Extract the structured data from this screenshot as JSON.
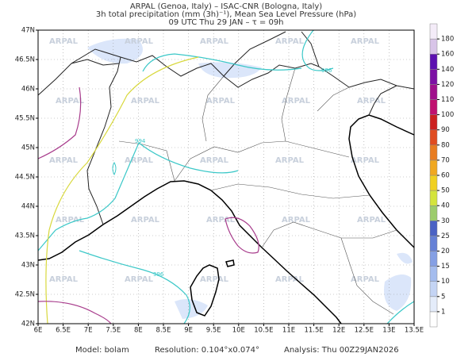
{
  "header": {
    "line1": "ARPAL (Genoa, Italy)  –  ISAC-CNR (Bologna, Italy)",
    "line2": "3h total precipitation (mm (3h)⁻¹), Mean Sea Level Pressure (hPa)",
    "line3": "09 UTC Thu 29 JAN  –  τ = 09h"
  },
  "axes": {
    "lon_labels": [
      "6E",
      "6.5E",
      "7E",
      "7.5E",
      "8E",
      "8.5E",
      "9E",
      "9.5E",
      "10E",
      "10.5E",
      "11E",
      "11.5E",
      "12E",
      "12.5E",
      "13E",
      "13.5E"
    ],
    "lat_labels": [
      "47N",
      "46.5N",
      "46N",
      "45.5N",
      "45N",
      "44.5N",
      "44N",
      "43.5N",
      "43N",
      "42.5N",
      "42N"
    ]
  },
  "watermark": "ARPAL",
  "contour_labels": [
    "996",
    "994",
    "996"
  ],
  "colorbar": {
    "levels": [
      1,
      5,
      10,
      15,
      20,
      25,
      30,
      40,
      50,
      60,
      70,
      80,
      90,
      100,
      110,
      120,
      140,
      160,
      180
    ],
    "colors": [
      "#ffffff",
      "#e4ecfa",
      "#c4d4f4",
      "#a4bcee",
      "#849fe4",
      "#6580d6",
      "#4a62c4",
      "#9ccc6c",
      "#d4e43c",
      "#f0d020",
      "#f0a820",
      "#e87c20",
      "#e04c20",
      "#cc2020",
      "#c01070",
      "#a0108c",
      "#7c10a4",
      "#5c10b0",
      "#d8c4e8",
      "#f4ecf8"
    ]
  },
  "footer": {
    "model": "Model: bolam",
    "resolution": "Resolution: 0.104°x0.074°",
    "analysis": "Analysis: Thu 00Z29JAN2026"
  }
}
